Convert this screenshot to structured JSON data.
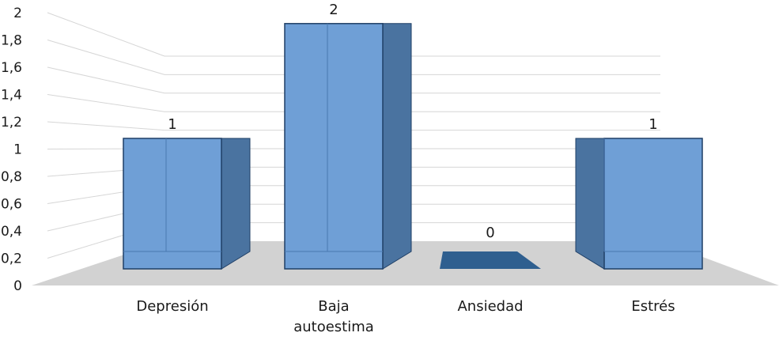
{
  "chart_data": {
    "type": "bar",
    "title": "",
    "xlabel": "",
    "ylabel": "",
    "categories": [
      "Depresión",
      "Baja autoestima",
      "Ansiedad",
      "Estrés"
    ],
    "category_lines": [
      [
        "Depresión"
      ],
      [
        "Baja",
        "autoestima"
      ],
      [
        "Ansiedad"
      ],
      [
        "Estrés"
      ]
    ],
    "values": [
      1,
      1.88,
      0,
      1
    ],
    "data_labels": [
      "1",
      "2",
      "0",
      "1"
    ],
    "yticks": [
      "0",
      "0,2",
      "0,4",
      "0,6",
      "0,8",
      "1",
      "1,2",
      "1,4",
      "1,6",
      "1,8",
      "2"
    ],
    "ylim": [
      0,
      2
    ],
    "grid": true,
    "legend": "none",
    "three_d": true
  },
  "colors": {
    "bar_front": "#6f9fd6",
    "bar_side": "#4a73a0",
    "bar_edge": "#1f3f66",
    "floor": "#d2d2d2",
    "grid": "#d6d6d6",
    "zero_bar": "#2f5f8f"
  }
}
